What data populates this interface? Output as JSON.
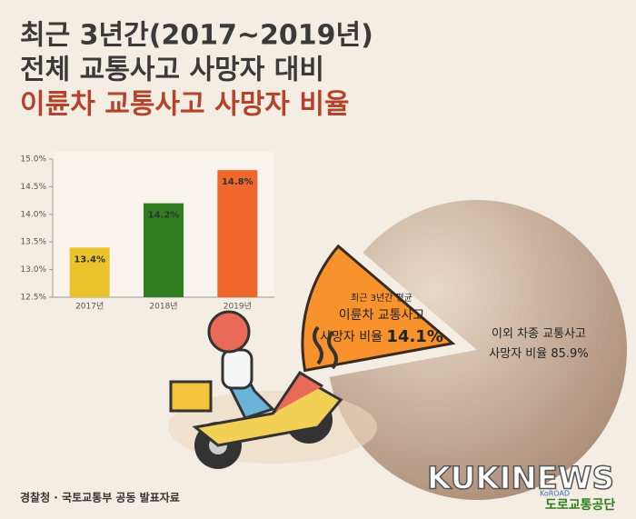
{
  "title_lines": [
    "최근 3년간(2017~2019년)",
    "전체 교통사고 사망자 대비",
    "이륜차 교통사고 사망자 비율"
  ],
  "source": "경찰청 · 국토교통부 공동 발표자료",
  "watermark": "KUKINEWS",
  "logo": {
    "small": "KoROAD",
    "name": "도로교통공단"
  },
  "chart_data": [
    {
      "type": "bar",
      "categories": [
        "2017년",
        "2018년",
        "2019년"
      ],
      "values": [
        13.4,
        14.2,
        14.8
      ],
      "value_labels": [
        "13.4%",
        "14.2%",
        "14.8%"
      ],
      "colors": [
        "#e9c22c",
        "#2f7d1e",
        "#f0672b"
      ],
      "ylim": [
        12.5,
        15.0
      ],
      "yticks": [
        {
          "value": 12.5,
          "label": "12.5%"
        },
        {
          "value": 13.0,
          "label": "13.0%"
        },
        {
          "value": 13.5,
          "label": "13.5%"
        },
        {
          "value": 14.0,
          "label": "14.0%"
        },
        {
          "value": 14.5,
          "label": "14.5%"
        },
        {
          "value": 15.0,
          "label": "15.0%"
        }
      ],
      "grid": false
    },
    {
      "type": "pie",
      "values": [
        14.1,
        85.9
      ],
      "value_labels": [
        "14.1%",
        "85.9%"
      ],
      "label_lines": [
        [
          "최근 3년간 평균",
          "이륜차 교통사고",
          "사망자 비율"
        ],
        [
          "이외 차종 교통사고",
          "사망자 비율"
        ]
      ],
      "colors": [
        "#f7922c",
        "#c8ab95"
      ],
      "exploded": [
        true,
        false
      ]
    }
  ]
}
